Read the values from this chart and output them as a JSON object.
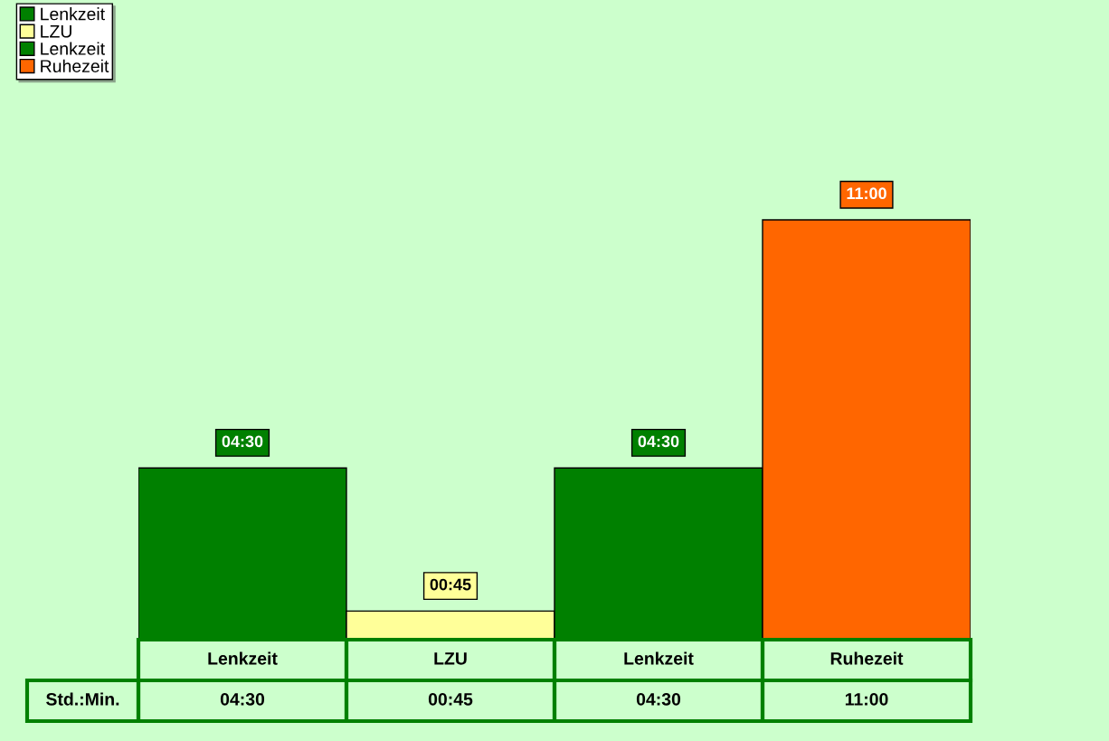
{
  "chart_data": {
    "type": "bar",
    "categories": [
      "Lenkzeit",
      "LZU",
      "Lenkzeit",
      "Ruhezeit"
    ],
    "series": [
      {
        "name": "Lenkzeit",
        "color": "#008000",
        "values": [
          4.5,
          null,
          null,
          null
        ],
        "value_labels": [
          "04:30",
          null,
          null,
          null
        ]
      },
      {
        "name": "LZU",
        "color": "#ffff99",
        "values": [
          null,
          0.75,
          null,
          null
        ],
        "value_labels": [
          null,
          "00:45",
          null,
          null
        ]
      },
      {
        "name": "Lenkzeit",
        "color": "#008000",
        "values": [
          null,
          null,
          4.5,
          null
        ],
        "value_labels": [
          null,
          null,
          "04:30",
          null
        ]
      },
      {
        "name": "Ruhezeit",
        "color": "#ff6600",
        "values": [
          null,
          null,
          null,
          11
        ],
        "value_labels": [
          null,
          null,
          null,
          "11:00"
        ]
      }
    ],
    "annotations": [
      "Std.:Min."
    ],
    "legend": "top left"
  }
}
